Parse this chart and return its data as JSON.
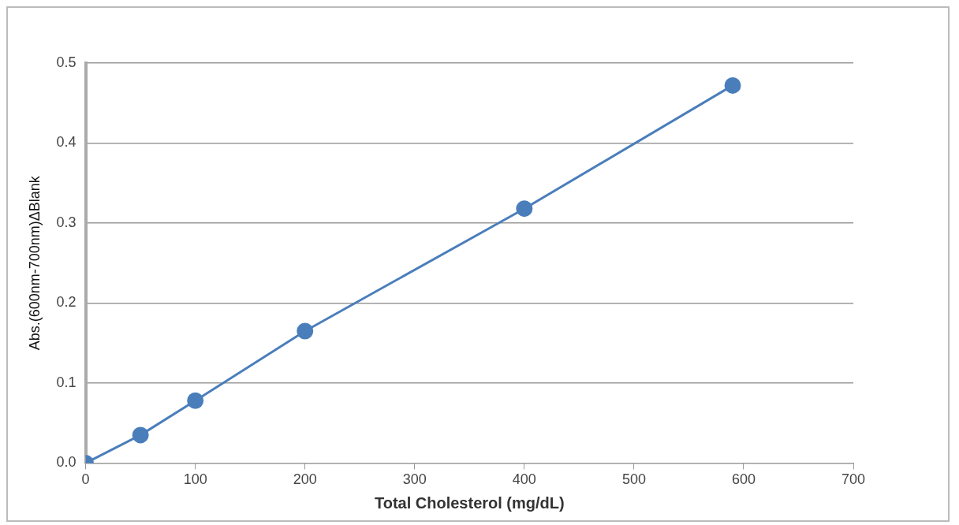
{
  "chart_data": {
    "type": "line",
    "xlabel": "Total Cholesterol (mg/dL)",
    "ylabel": "Abs.(600nm-700nm)ΔBlank",
    "x": [
      0,
      50,
      100,
      200,
      400,
      590
    ],
    "series": [
      {
        "color": "#4a7ebb",
        "values": [
          0,
          0.035,
          0.078,
          0.165,
          0.318,
          0.472
        ]
      }
    ],
    "xlim": [
      0,
      700
    ],
    "xticks": [
      0,
      100,
      200,
      300,
      400,
      500,
      600,
      700
    ],
    "ylim": [
      0,
      0.5
    ],
    "yticks": [
      {
        "value": 0,
        "label": "0.0"
      },
      0.1,
      0.2,
      0.3,
      0.4,
      0.5
    ],
    "grid": "y",
    "marker": "circle",
    "line_style": "solid",
    "legend": false
  }
}
